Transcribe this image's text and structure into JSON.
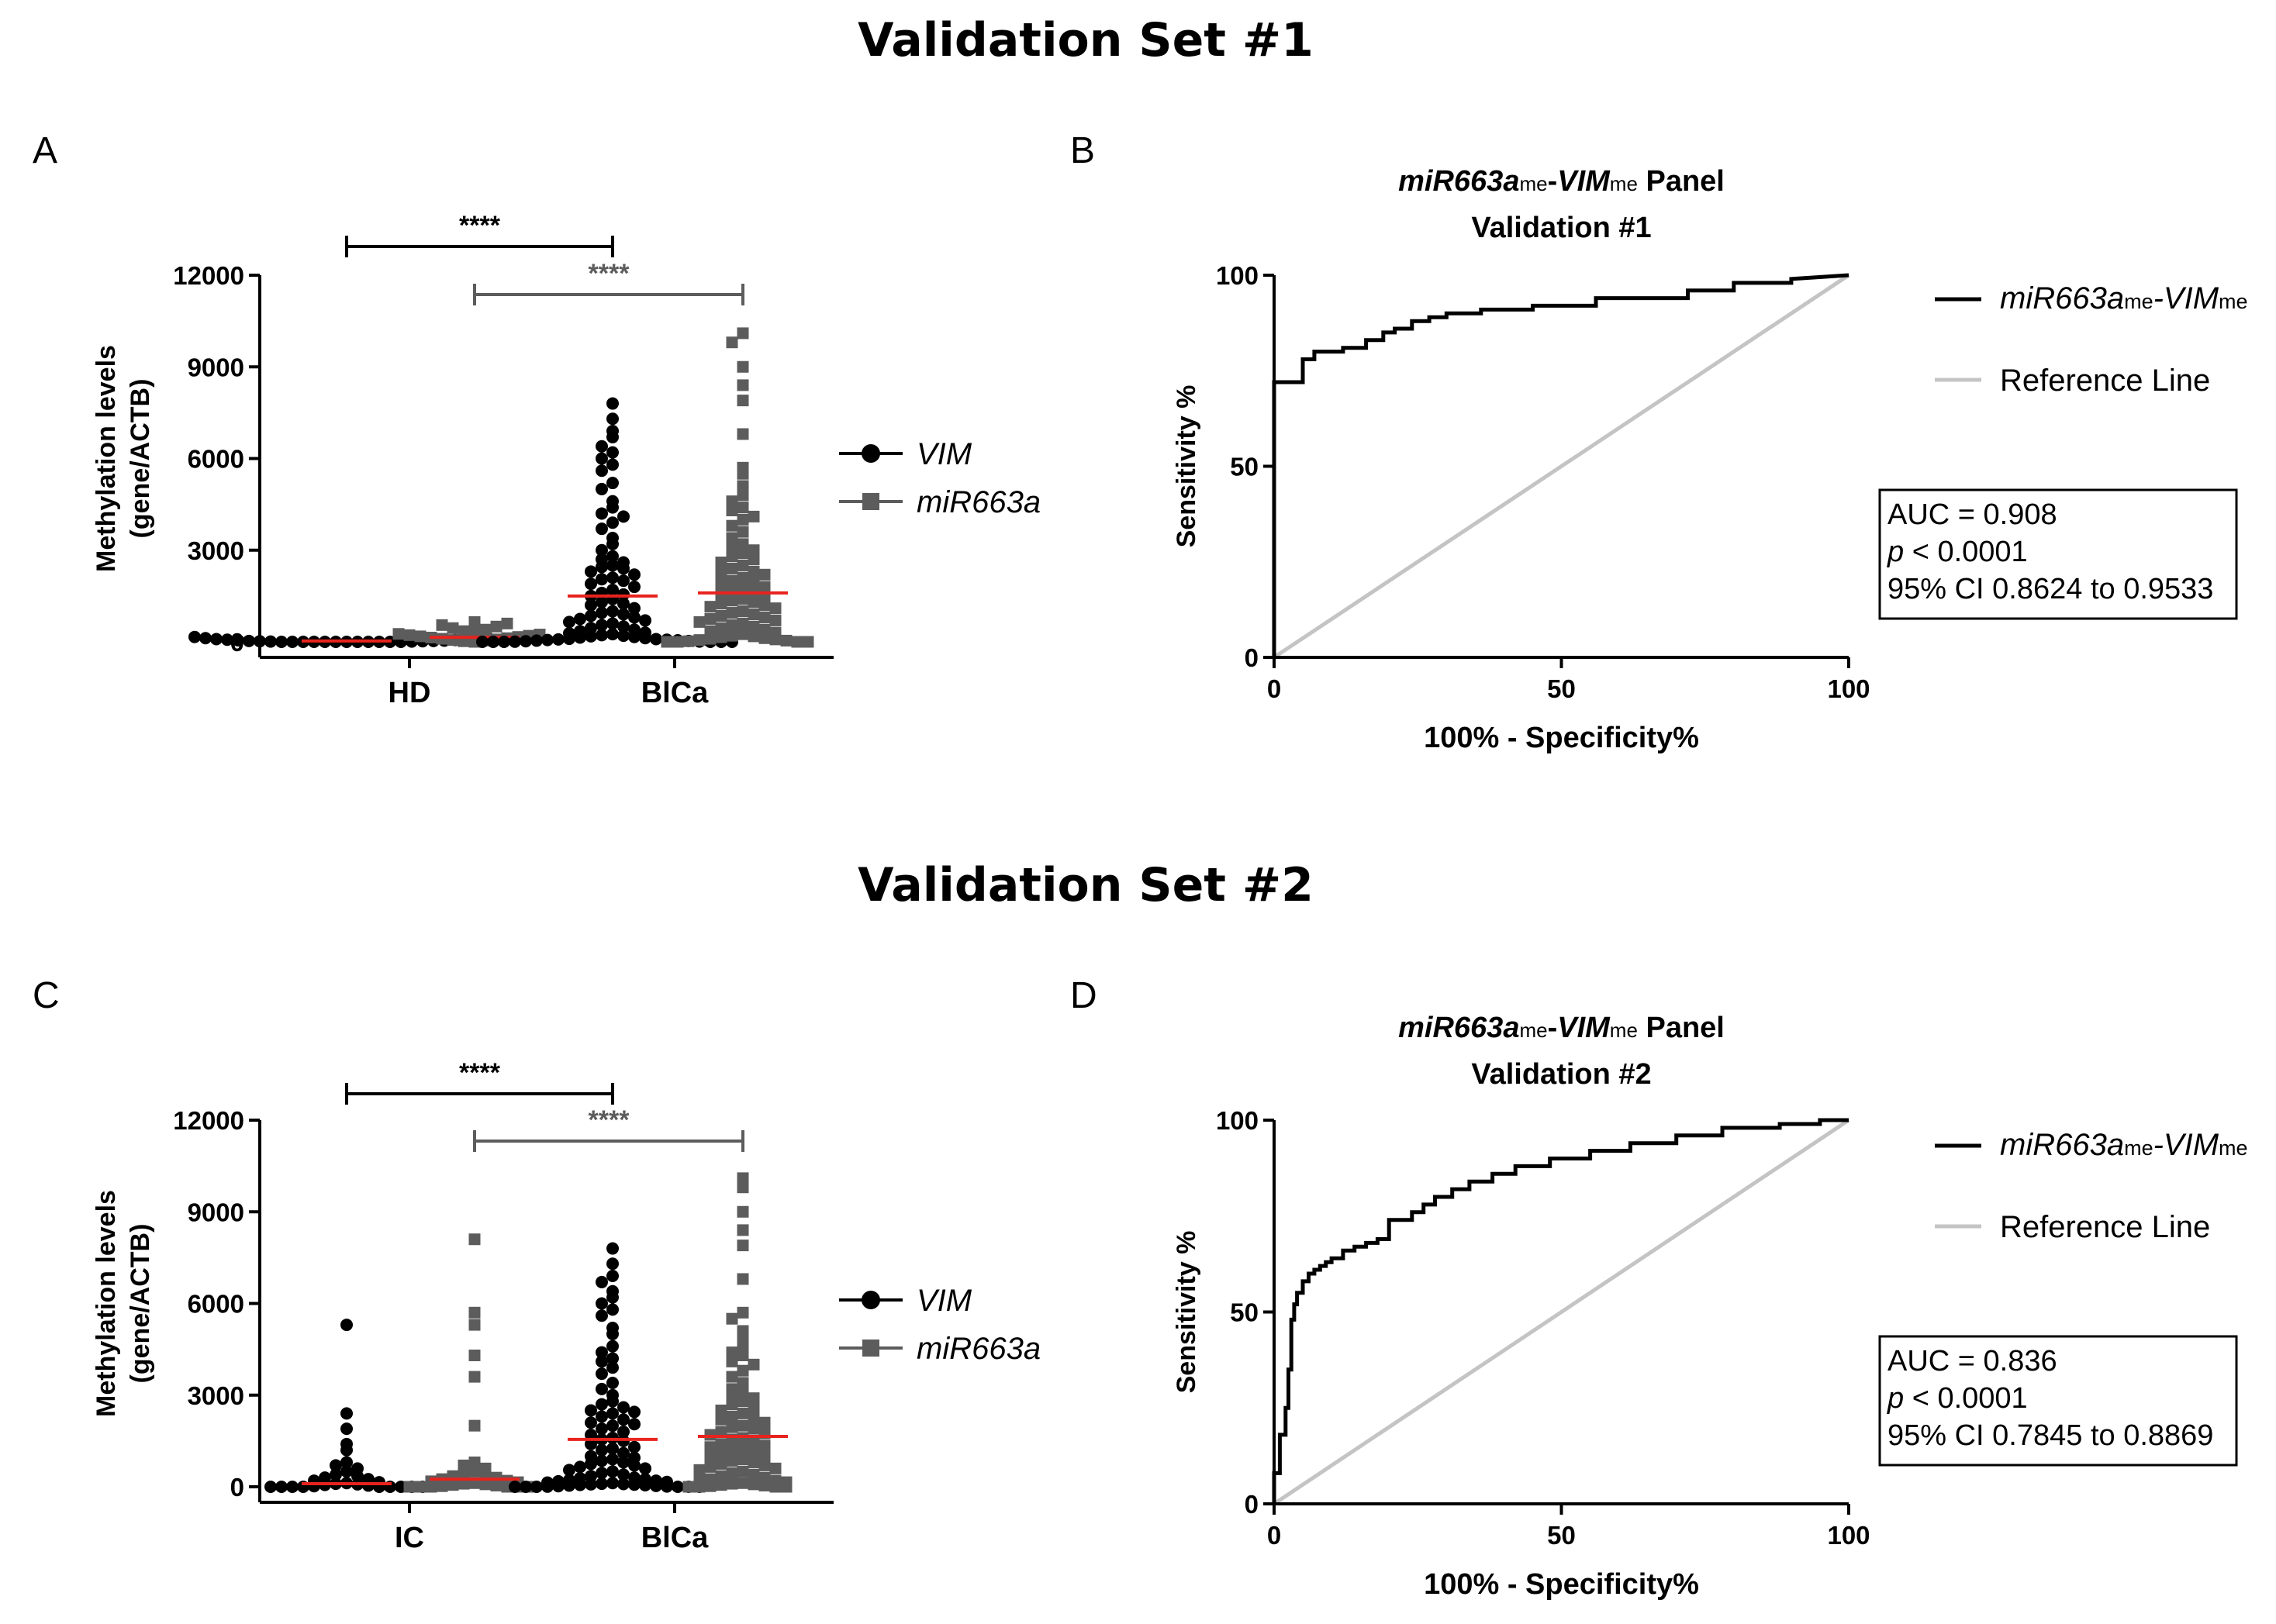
{
  "figure": {
    "set1_title": "Validation Set #1",
    "set2_title": "Validation Set #2"
  },
  "chart_data": [
    {
      "panel": "A",
      "type": "scatter",
      "subtype": "dot-plot",
      "ylabel_line1": "Methylation levels",
      "ylabel_line2": "(gene/ACTB)",
      "ylim": [
        0,
        12000
      ],
      "yticks": [
        "0",
        "3000",
        "6000",
        "9000",
        "12000"
      ],
      "groups": [
        "HD",
        "BlCa"
      ],
      "legend": [
        "VIM",
        "miR663a"
      ],
      "significance": [
        {
          "label": "****",
          "from": "HD VIM",
          "to": "BlCa VIM"
        },
        {
          "label": "****",
          "from": "HD miR663a",
          "to": "BlCa miR663a"
        }
      ],
      "series": [
        {
          "name": "VIM",
          "group": "HD",
          "median": 30,
          "values": [
            0,
            0,
            0,
            0,
            0,
            0,
            0,
            0,
            0,
            0,
            0,
            0,
            10,
            10,
            20,
            20,
            30,
            30,
            40,
            50,
            60,
            70,
            80,
            90,
            100,
            120,
            140,
            160
          ]
        },
        {
          "name": "miR663a",
          "group": "HD",
          "median": 150,
          "values": [
            0,
            20,
            40,
            60,
            80,
            100,
            120,
            140,
            160,
            180,
            200,
            220,
            240,
            260,
            300,
            350,
            400,
            450,
            500,
            550,
            600,
            650
          ]
        },
        {
          "name": "VIM",
          "group": "BlCa",
          "median": 1500,
          "values": [
            7800,
            7300,
            6900,
            6700,
            6400,
            6200,
            6000,
            5800,
            5600,
            5200,
            5000,
            4600,
            4400,
            4200,
            4100,
            3900,
            3700,
            3400,
            3200,
            3000,
            2800,
            2700,
            2600,
            2500,
            2450,
            2400,
            2300,
            2200,
            2100,
            2050,
            2000,
            1900,
            1800,
            1700,
            1600,
            1550,
            1500,
            1400,
            1300,
            1250,
            1200,
            1100,
            1000,
            950,
            900,
            850,
            800,
            750,
            700,
            650,
            600,
            550,
            500,
            450,
            400,
            350,
            300,
            280,
            250,
            220,
            200,
            180,
            160,
            140,
            120,
            100,
            90,
            80,
            70,
            60,
            50,
            40,
            30,
            20,
            10,
            5,
            0,
            0,
            0,
            0,
            0,
            0
          ]
        },
        {
          "name": "miR663a",
          "group": "BlCa",
          "median": 1600,
          "values": [
            10100,
            9800,
            9000,
            8400,
            7900,
            6800,
            5700,
            5500,
            5100,
            4800,
            4600,
            4400,
            4300,
            4100,
            4000,
            3800,
            3600,
            3400,
            3200,
            3100,
            3000,
            2900,
            2800,
            2700,
            2600,
            2500,
            2400,
            2300,
            2250,
            2200,
            2100,
            2000,
            1950,
            1900,
            1800,
            1750,
            1700,
            1600,
            1550,
            1500,
            1400,
            1350,
            1300,
            1250,
            1200,
            1150,
            1100,
            1000,
            950,
            900,
            850,
            800,
            750,
            700,
            650,
            600,
            550,
            500,
            450,
            400,
            350,
            300,
            250,
            200,
            180,
            150,
            120,
            100,
            80,
            60,
            40,
            20,
            0,
            0,
            0,
            0
          ]
        }
      ]
    },
    {
      "panel": "B",
      "type": "line",
      "title_main": "miR663a",
      "title_sub1": "me",
      "title_dash": "-",
      "title_main2": "VIM",
      "title_sub2": "me",
      "title_rest": " Panel",
      "title_line2": "Validation #1",
      "xlabel": "100% - Specificity%",
      "ylabel": "Sensitivity %",
      "xlim": [
        0,
        100
      ],
      "ylim": [
        0,
        100
      ],
      "xticks": [
        "0",
        "50",
        "100"
      ],
      "yticks": [
        "0",
        "50",
        "100"
      ],
      "legend_roc_main": "miR663a",
      "legend_roc_sub1": "me",
      "legend_roc_main2": "VIM",
      "legend_roc_sub2": "me",
      "legend_ref": "Reference Line",
      "auc_line": "AUC = 0.908",
      "p_symbol": "p",
      "p_rest": " < 0.0001",
      "ci_line": "95% CI 0.8624 to 0.9533",
      "series": [
        {
          "name": "ROC",
          "x": [
            0,
            0,
            5,
            5,
            7,
            7,
            12,
            12,
            16,
            16,
            19,
            19,
            21,
            21,
            24,
            24,
            27,
            27,
            30,
            30,
            36,
            36,
            45,
            45,
            56,
            56,
            72,
            72,
            80,
            80,
            90,
            90,
            100
          ],
          "y": [
            0,
            72,
            72,
            78,
            78,
            80,
            80,
            81,
            81,
            83,
            83,
            85,
            85,
            86,
            86,
            88,
            88,
            89,
            89,
            90,
            90,
            91,
            91,
            92,
            92,
            94,
            94,
            96,
            96,
            98,
            98,
            99,
            100
          ]
        },
        {
          "name": "Reference Line",
          "x": [
            0,
            100
          ],
          "y": [
            0,
            100
          ]
        }
      ]
    },
    {
      "panel": "C",
      "type": "scatter",
      "subtype": "dot-plot",
      "ylabel_line1": "Methylation levels",
      "ylabel_line2": "(gene/ACTB)",
      "ylim": [
        0,
        12000
      ],
      "yticks": [
        "0",
        "3000",
        "6000",
        "9000",
        "12000"
      ],
      "groups": [
        "IC",
        "BlCa"
      ],
      "legend": [
        "VIM",
        "miR663a"
      ],
      "significance": [
        {
          "label": "****",
          "from": "IC VIM",
          "to": "BlCa VIM"
        },
        {
          "label": "****",
          "from": "IC miR663a",
          "to": "BlCa miR663a"
        }
      ],
      "series": [
        {
          "name": "VIM",
          "group": "IC",
          "median": 100,
          "values": [
            5300,
            2400,
            1900,
            1400,
            1200,
            800,
            700,
            600,
            500,
            400,
            350,
            300,
            250,
            200,
            150,
            120,
            100,
            80,
            60,
            40,
            20,
            0,
            0,
            0,
            0,
            0,
            0,
            0,
            0,
            0
          ]
        },
        {
          "name": "miR663a",
          "group": "IC",
          "median": 250,
          "values": [
            8100,
            5700,
            5300,
            4300,
            3600,
            2000,
            800,
            700,
            600,
            500,
            450,
            400,
            350,
            300,
            250,
            200,
            180,
            150,
            120,
            100,
            80,
            60,
            40,
            20,
            0,
            0,
            0,
            0,
            0,
            0
          ]
        },
        {
          "name": "VIM",
          "group": "BlCa",
          "median": 1550,
          "values": [
            7800,
            7300,
            6900,
            6700,
            6400,
            6200,
            6000,
            5800,
            5600,
            5200,
            5000,
            4600,
            4400,
            4200,
            4100,
            3900,
            3700,
            3400,
            3200,
            3000,
            2800,
            2700,
            2600,
            2500,
            2450,
            2400,
            2300,
            2200,
            2100,
            2050,
            2000,
            1900,
            1800,
            1700,
            1600,
            1550,
            1500,
            1400,
            1300,
            1250,
            1200,
            1100,
            1000,
            950,
            900,
            850,
            800,
            750,
            700,
            650,
            600,
            550,
            500,
            450,
            400,
            350,
            300,
            280,
            250,
            220,
            200,
            180,
            160,
            140,
            120,
            100,
            90,
            80,
            70,
            60,
            50,
            40,
            30,
            20,
            10,
            5,
            0,
            0,
            0,
            0,
            0,
            0
          ]
        },
        {
          "name": "miR663a",
          "group": "BlCa",
          "median": 1650,
          "values": [
            10100,
            9800,
            9000,
            8400,
            7900,
            6800,
            5700,
            5500,
            5100,
            4800,
            4600,
            4400,
            4300,
            4100,
            4000,
            3800,
            3600,
            3400,
            3200,
            3100,
            3000,
            2900,
            2800,
            2700,
            2600,
            2500,
            2400,
            2300,
            2250,
            2200,
            2100,
            2000,
            1950,
            1900,
            1800,
            1750,
            1700,
            1600,
            1550,
            1500,
            1400,
            1350,
            1300,
            1250,
            1200,
            1150,
            1100,
            1000,
            950,
            900,
            850,
            800,
            750,
            700,
            650,
            600,
            550,
            500,
            450,
            400,
            350,
            300,
            250,
            200,
            180,
            150,
            120,
            100,
            80,
            60,
            40,
            20,
            0,
            0,
            0,
            0
          ]
        }
      ]
    },
    {
      "panel": "D",
      "type": "line",
      "title_main": "miR663a",
      "title_sub1": "me",
      "title_dash": "-",
      "title_main2": "VIM",
      "title_sub2": "me",
      "title_rest": " Panel",
      "title_line2": "Validation #2",
      "xlabel": "100% - Specificity%",
      "ylabel": "Sensitivity %",
      "xlim": [
        0,
        100
      ],
      "ylim": [
        0,
        100
      ],
      "xticks": [
        "0",
        "50",
        "100"
      ],
      "yticks": [
        "0",
        "50",
        "100"
      ],
      "legend_roc_main": "miR663a",
      "legend_roc_sub1": "me",
      "legend_roc_main2": "VIM",
      "legend_roc_sub2": "me",
      "legend_ref": "Reference Line",
      "auc_line": "AUC = 0.836",
      "p_symbol": "p",
      "p_rest": " < 0.0001",
      "ci_line": "95% CI 0.7845 to 0.8869",
      "series": [
        {
          "name": "ROC",
          "x": [
            0,
            0,
            1,
            1,
            2,
            2,
            2.5,
            2.5,
            3,
            3,
            3.5,
            3.5,
            4,
            4,
            5,
            5,
            6,
            6,
            7,
            7,
            8,
            8,
            9,
            9,
            10,
            10,
            12,
            12,
            14,
            14,
            16,
            16,
            18,
            18,
            20,
            20,
            24,
            24,
            26,
            26,
            28,
            28,
            31,
            31,
            34,
            34,
            38,
            38,
            42,
            42,
            48,
            48,
            55,
            55,
            62,
            62,
            70,
            70,
            78,
            78,
            88,
            88,
            95,
            95,
            100
          ],
          "y": [
            0,
            8,
            8,
            18,
            18,
            25,
            25,
            35,
            35,
            48,
            48,
            52,
            52,
            55,
            55,
            58,
            58,
            60,
            60,
            61,
            61,
            62,
            62,
            63,
            63,
            64,
            64,
            66,
            66,
            67,
            67,
            68,
            68,
            69,
            69,
            74,
            74,
            76,
            76,
            78,
            78,
            80,
            80,
            82,
            82,
            84,
            84,
            86,
            86,
            88,
            88,
            90,
            90,
            92,
            92,
            94,
            94,
            96,
            96,
            98,
            98,
            99,
            99,
            100,
            100
          ]
        },
        {
          "name": "Reference Line",
          "x": [
            0,
            100
          ],
          "y": [
            0,
            100
          ]
        }
      ]
    }
  ],
  "colors": {
    "vim": "#000000",
    "mir": "#5c5c5c",
    "median": "#e8231e",
    "reference": "#c4c4c4",
    "axis": "#000000"
  }
}
